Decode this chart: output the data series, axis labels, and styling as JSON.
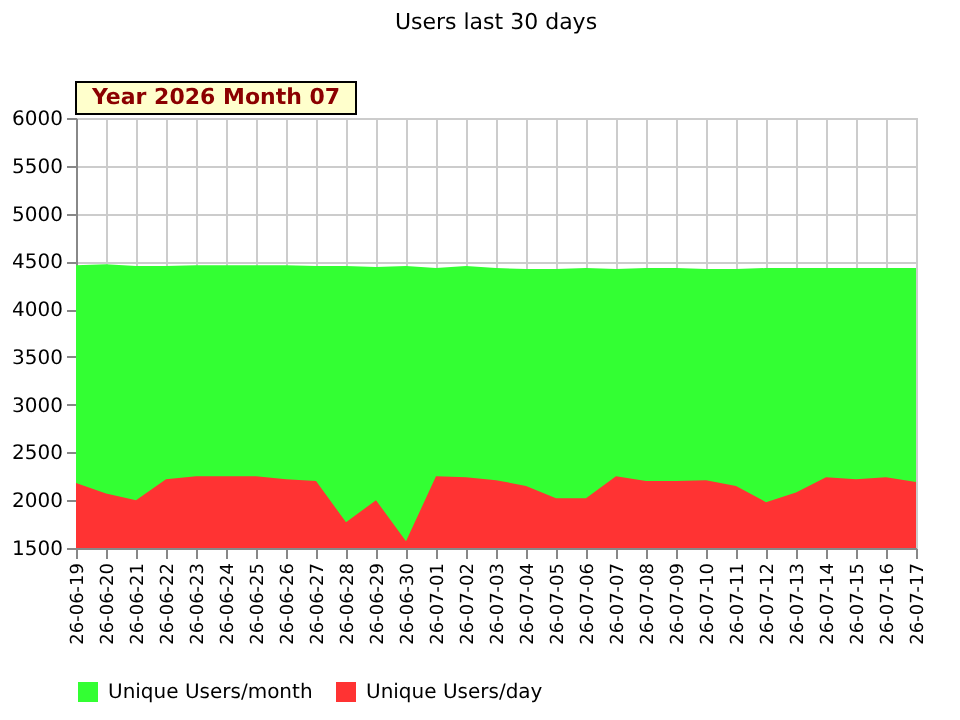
{
  "chart_data": {
    "type": "area",
    "title": "Users last 30 days",
    "annotations": [
      "Year 2026 Month 07"
    ],
    "categories": [
      "26-06-19",
      "26-06-20",
      "26-06-21",
      "26-06-22",
      "26-06-23",
      "26-06-24",
      "26-06-25",
      "26-06-26",
      "26-06-27",
      "26-06-28",
      "26-06-29",
      "26-06-30",
      "26-07-01",
      "26-07-02",
      "26-07-03",
      "26-07-04",
      "26-07-05",
      "26-07-06",
      "26-07-07",
      "26-07-08",
      "26-07-09",
      "26-07-10",
      "26-07-11",
      "26-07-12",
      "26-07-13",
      "26-07-14",
      "26-07-15",
      "26-07-16",
      "26-07-17"
    ],
    "series": [
      {
        "name": "Unique Users/month",
        "color": "#33ff33",
        "values": [
          4460,
          4470,
          4450,
          4450,
          4460,
          4460,
          4460,
          4460,
          4450,
          4450,
          4440,
          4450,
          4430,
          4450,
          4430,
          4420,
          4420,
          4430,
          4420,
          4430,
          4430,
          4420,
          4420,
          4430,
          4430,
          4430,
          4430,
          4430,
          4430
        ]
      },
      {
        "name": "Unique Users/day",
        "color": "#ff3333",
        "values": [
          2180,
          2070,
          2000,
          2220,
          2250,
          2250,
          2250,
          2220,
          2200,
          1770,
          2000,
          1570,
          2250,
          2240,
          2210,
          2150,
          2020,
          2020,
          2250,
          2200,
          2200,
          2210,
          2150,
          1980,
          2080,
          2240,
          2220,
          2240,
          2190
        ]
      }
    ],
    "ylim": [
      1500,
      6000
    ],
    "yticks": [
      1500,
      2000,
      2500,
      3000,
      3500,
      4000,
      4500,
      5000,
      5500,
      6000
    ],
    "grid": true,
    "legend": "bottom"
  }
}
